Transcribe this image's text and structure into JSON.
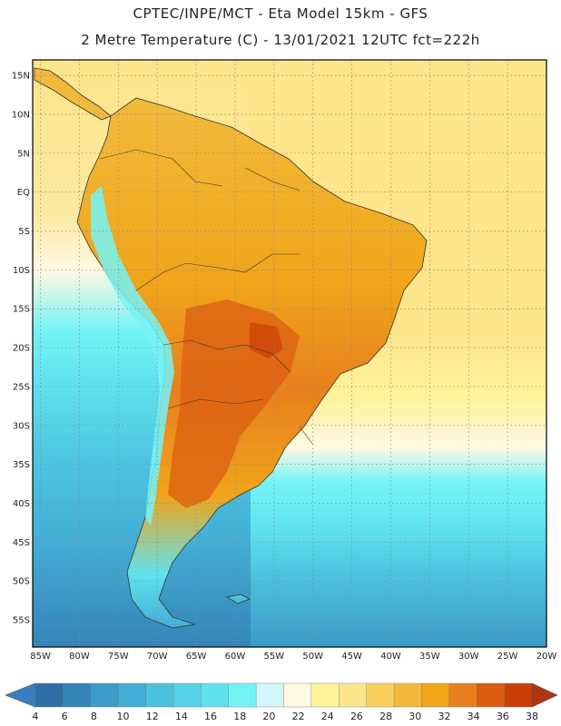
{
  "header": {
    "line1": "CPTEC/INPE/MCT  -   Eta Model 15km  -  GFS",
    "line2": "2 Metre Temperature (C) - 13/01/2021 12UTC fct=222h"
  },
  "map": {
    "lat_labels": [
      "15N",
      "10N",
      "5N",
      "EQ",
      "5S",
      "10S",
      "15S",
      "20S",
      "25S",
      "30S",
      "35S",
      "40S",
      "45S",
      "50S",
      "55S"
    ],
    "lon_labels": [
      "85W",
      "80W",
      "75W",
      "70W",
      "65W",
      "60W",
      "55W",
      "50W",
      "45W",
      "40W",
      "35W",
      "30W",
      "25W",
      "20W"
    ],
    "lat_range": [
      17,
      -58.5
    ],
    "lon_range": [
      -86,
      -20
    ],
    "grid": "dotted"
  },
  "colorbar": {
    "labels": [
      "4",
      "6",
      "8",
      "10",
      "12",
      "14",
      "16",
      "18",
      "20",
      "22",
      "24",
      "26",
      "28",
      "30",
      "32",
      "34",
      "36",
      "38"
    ],
    "colors": [
      "#2e6fa8",
      "#3584b8",
      "#3d9bc8",
      "#43aed5",
      "#4cc1de",
      "#55d2e6",
      "#5fe2ee",
      "#74f3f7",
      "#d2f6fa",
      "#fff8e3",
      "#fef39b",
      "#fce58a",
      "#f7cf5e",
      "#f2ba3b",
      "#f0a51a",
      "#e8801d",
      "#dc5d10",
      "#c93f05"
    ],
    "under_color": "#3a7ec2",
    "over_color": "#b0340f"
  }
}
